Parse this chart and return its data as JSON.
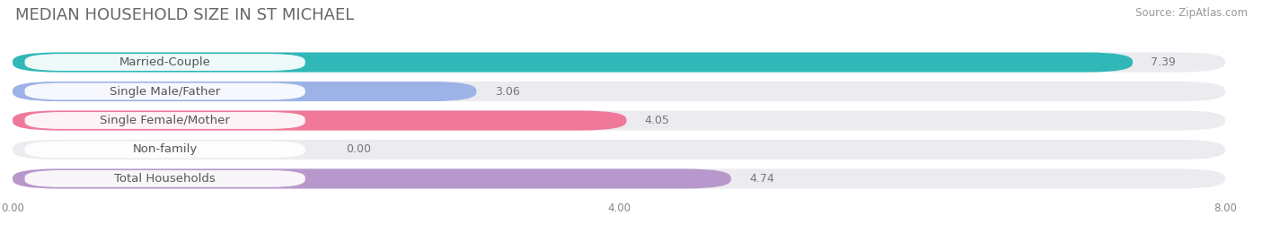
{
  "title": "MEDIAN HOUSEHOLD SIZE IN ST MICHAEL",
  "source": "Source: ZipAtlas.com",
  "categories": [
    "Married-Couple",
    "Single Male/Father",
    "Single Female/Mother",
    "Non-family",
    "Total Households"
  ],
  "values": [
    7.39,
    3.06,
    4.05,
    0.0,
    4.74
  ],
  "bar_colors": [
    "#30b8b8",
    "#9db3e8",
    "#f07898",
    "#f8c888",
    "#b898cc"
  ],
  "xlim": [
    0,
    8.0
  ],
  "xticks": [
    0.0,
    4.0,
    8.0
  ],
  "xtick_labels": [
    "0.00",
    "4.00",
    "8.00"
  ],
  "background_color": "#ffffff",
  "bar_background_color": "#ebebf0",
  "title_fontsize": 13,
  "label_fontsize": 9.5,
  "value_fontsize": 9,
  "source_fontsize": 8.5,
  "bar_height": 0.68,
  "bar_gap": 0.32
}
